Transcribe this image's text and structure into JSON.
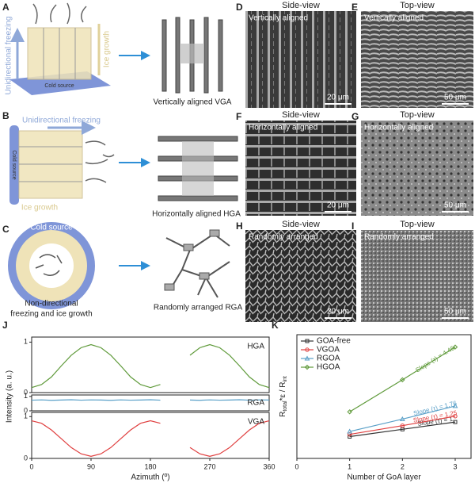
{
  "panels": {
    "A": {
      "label": "A",
      "direction": "Unidirectional freezing",
      "growth": "Ice growth",
      "source": "Cold source",
      "result": "Vertically aligned VGA"
    },
    "B": {
      "label": "B",
      "direction": "Unidirectional freezing",
      "growth": "Ice growth",
      "source": "Cold source",
      "result": "Horizontally aligned HGA"
    },
    "C": {
      "label": "C",
      "source": "Cold source",
      "caption": [
        "Non-directional",
        "freezing and ice growth"
      ],
      "result": "Randomly arranged RGA"
    },
    "D": {
      "label": "D",
      "view": "Side-view",
      "caption": "Vertically aligned",
      "scale": "20 μm"
    },
    "E": {
      "label": "E",
      "view": "Top-view",
      "caption": "Vertically aligned",
      "scale": "50 μm"
    },
    "F": {
      "label": "F",
      "view": "Side-view",
      "caption": "Horizontally aligned",
      "scale": "20 μm"
    },
    "G": {
      "label": "G",
      "view": "Top-view",
      "caption": "Horizontally aligned",
      "scale": "50 μm"
    },
    "H": {
      "label": "H",
      "view": "Side-view",
      "caption": "Randomly arranged",
      "scale": "20 μm"
    },
    "I": {
      "label": "I",
      "view": "Top-view",
      "caption": "Randomly arranged",
      "scale": "50 μm"
    }
  },
  "chart_data": [
    {
      "type": "line",
      "panel": "J",
      "x": [
        0,
        15,
        30,
        45,
        60,
        75,
        90,
        105,
        120,
        135,
        150,
        165,
        180,
        195,
        210,
        225,
        240,
        255,
        270,
        285,
        300,
        315,
        330,
        345,
        360
      ],
      "xlim": [
        0,
        360
      ],
      "xticks": [
        0,
        90,
        180,
        270,
        360
      ],
      "xlabel": "Azimuth (º)",
      "ylabel": "Intensity (a. u.)",
      "ylim": [
        0,
        1.1
      ],
      "yticks": [
        0,
        1
      ],
      "series": [
        {
          "name": "HGA",
          "color": "#5f9a3a",
          "values": [
            0.1,
            0.16,
            0.31,
            0.53,
            0.74,
            0.89,
            0.95,
            0.89,
            0.74,
            0.53,
            0.31,
            0.16,
            0.1,
            0.16,
            null,
            null,
            0.74,
            0.89,
            0.95,
            0.89,
            0.74,
            0.53,
            0.31,
            0.16,
            0.1
          ]
        },
        {
          "name": "RGA",
          "color": "#5aa0c8",
          "values": [
            0.74,
            0.76,
            0.73,
            0.75,
            0.77,
            0.74,
            0.76,
            0.75,
            0.73,
            0.76,
            0.74,
            0.75,
            0.77,
            0.74,
            null,
            null,
            0.75,
            0.73,
            0.76,
            0.74,
            0.75,
            0.77,
            0.74,
            0.76,
            0.75
          ]
        },
        {
          "name": "VGA",
          "color": "#e04040",
          "values": [
            0.9,
            0.84,
            0.68,
            0.47,
            0.26,
            0.11,
            0.05,
            0.11,
            0.26,
            0.47,
            0.68,
            0.84,
            0.9,
            0.84,
            null,
            null,
            0.26,
            0.11,
            0.05,
            0.11,
            0.26,
            0.47,
            0.68,
            0.84,
            0.9
          ]
        }
      ]
    },
    {
      "type": "line",
      "panel": "K",
      "x": [
        1,
        2,
        3
      ],
      "xlim": [
        0,
        3.3
      ],
      "xticks": [
        0,
        1,
        2,
        3
      ],
      "xlabel": "Number of GoA layer",
      "ylabel": [
        "R",
        "total",
        "*ε / R",
        "int"
      ],
      "ylim": [
        0,
        17
      ],
      "legend": "upper left",
      "series": [
        {
          "name": "GOA-free",
          "color": "#333333",
          "values": [
            3,
            4,
            5
          ],
          "annotation": "Slope (τ) = 1"
        },
        {
          "name": "VGOA",
          "color": "#e04040",
          "values": [
            3.3,
            4.5,
            5.8
          ],
          "annotation": "Slope (τ) = 1.25"
        },
        {
          "name": "RGOA",
          "color": "#5aa0c8",
          "values": [
            3.7,
            5.4,
            7.2
          ],
          "annotation": "Slope (τ) = 1.76"
        },
        {
          "name": "HGOA",
          "color": "#5f9a3a",
          "values": [
            6.4,
            10.8,
            15.3
          ],
          "annotation": "Slope (τ) = 4.46"
        }
      ]
    }
  ]
}
